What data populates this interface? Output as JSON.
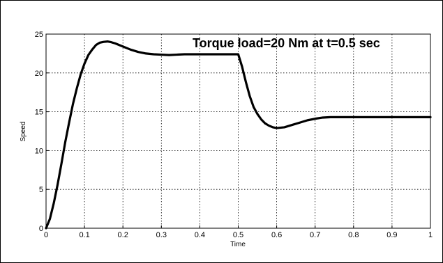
{
  "chart_data": {
    "type": "line",
    "title": "",
    "xlabel": "Time",
    "ylabel": "Speed",
    "xlim": [
      0,
      1
    ],
    "ylim": [
      0,
      25
    ],
    "xticks": [
      0,
      0.1,
      0.2,
      0.3,
      0.4,
      0.5,
      0.6,
      0.7,
      0.8,
      0.9,
      1
    ],
    "xtick_labels": [
      "0",
      "0.1",
      "0.2",
      "0.3",
      "0.4",
      "0.5",
      "0.6",
      "0.7",
      "0.8",
      "0.9",
      "1"
    ],
    "yticks": [
      0,
      5,
      10,
      15,
      20,
      25
    ],
    "ytick_labels": [
      "0",
      "5",
      "10",
      "15",
      "20",
      "25"
    ],
    "grid": true,
    "annotation": "Torque load=20 Nm at t=0.5 sec",
    "line_color": "#000000",
    "series": [
      {
        "x": [
          0,
          0.01,
          0.02,
          0.03,
          0.04,
          0.05,
          0.06,
          0.07,
          0.08,
          0.09,
          0.1,
          0.11,
          0.12,
          0.13,
          0.14,
          0.15,
          0.16,
          0.17,
          0.18,
          0.19,
          0.2,
          0.22,
          0.24,
          0.26,
          0.28,
          0.3,
          0.32,
          0.34,
          0.36,
          0.38,
          0.4,
          0.42,
          0.44,
          0.46,
          0.48,
          0.5,
          0.51,
          0.52,
          0.53,
          0.54,
          0.55,
          0.56,
          0.57,
          0.58,
          0.59,
          0.6,
          0.62,
          0.64,
          0.66,
          0.68,
          0.7,
          0.72,
          0.74,
          0.76,
          0.78,
          0.8,
          0.85,
          0.9,
          0.95,
          1.0
        ],
        "y": [
          0,
          1.2,
          3.2,
          5.6,
          8.3,
          11.1,
          13.6,
          16.0,
          18.0,
          19.8,
          21.2,
          22.3,
          23.0,
          23.6,
          23.9,
          24.0,
          24.05,
          23.95,
          23.8,
          23.6,
          23.4,
          23.0,
          22.7,
          22.5,
          22.4,
          22.35,
          22.3,
          22.35,
          22.4,
          22.4,
          22.4,
          22.4,
          22.4,
          22.4,
          22.4,
          22.4,
          20.8,
          18.8,
          17.0,
          15.6,
          14.7,
          14.0,
          13.5,
          13.2,
          13.0,
          12.9,
          13.0,
          13.3,
          13.6,
          13.9,
          14.1,
          14.25,
          14.3,
          14.3,
          14.3,
          14.3,
          14.3,
          14.3,
          14.3,
          14.3
        ]
      }
    ]
  }
}
